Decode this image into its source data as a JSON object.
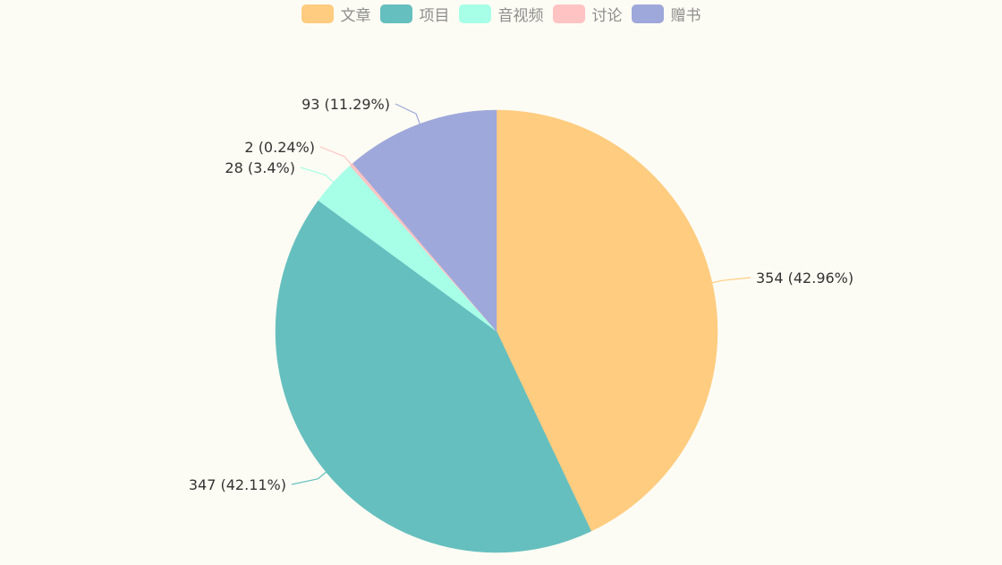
{
  "chart_data": {
    "type": "pie",
    "title": "",
    "legend_position": "top-center",
    "series": [
      {
        "slices": [
          {
            "name": "文章",
            "value": 354,
            "percent": "42.96%",
            "color": "#ffcc80"
          },
          {
            "name": "项目",
            "value": 347,
            "percent": "42.11%",
            "color": "#66bfbf"
          },
          {
            "name": "音视频",
            "value": 28,
            "percent": "3.4%",
            "color": "#a8ffe8"
          },
          {
            "name": "讨论",
            "value": 2,
            "percent": "0.24%",
            "color": "#ffc3c3"
          },
          {
            "name": "赠书",
            "value": 93,
            "percent": "11.29%",
            "color": "#9fa8da"
          }
        ]
      }
    ]
  },
  "colors": {
    "background": "#fdfcf4",
    "label_text": "#333333",
    "legend_text": "#8d8d8d"
  }
}
